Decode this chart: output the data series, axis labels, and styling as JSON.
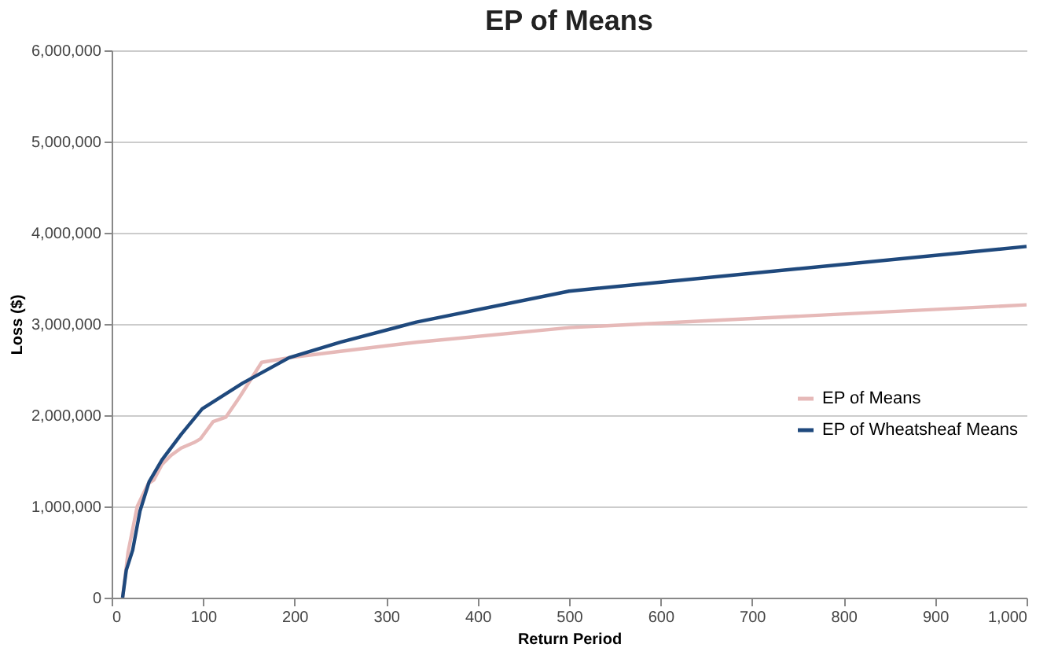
{
  "chart_data": {
    "type": "line",
    "title": "EP of Means",
    "xlabel": "Return Period",
    "ylabel": "Loss ($)",
    "xlim": [
      0,
      1000
    ],
    "xticks": [
      {
        "value": 0,
        "label": "0"
      },
      {
        "value": 100,
        "label": "100"
      },
      {
        "value": 200,
        "label": "200"
      },
      {
        "value": 300,
        "label": "300"
      },
      {
        "value": 400,
        "label": "400"
      },
      {
        "value": 500,
        "label": "500"
      },
      {
        "value": 600,
        "label": "600"
      },
      {
        "value": 700,
        "label": "700"
      },
      {
        "value": 800,
        "label": "800"
      },
      {
        "value": 900,
        "label": "900"
      },
      {
        "value": 1000,
        "label": "1,000"
      }
    ],
    "ylim": [
      0,
      6000000
    ],
    "yticks": [
      {
        "value": 0,
        "label": "0"
      },
      {
        "value": 1000000,
        "label": "1,000,000"
      },
      {
        "value": 2000000,
        "label": "2,000,000"
      },
      {
        "value": 3000000,
        "label": "3,000,000"
      },
      {
        "value": 4000000,
        "label": "4,000,000"
      },
      {
        "value": 5000000,
        "label": "5,000,000"
      },
      {
        "value": 6000000,
        "label": "6,000,000"
      }
    ],
    "grid": "y",
    "legend": "right",
    "marker": "none",
    "series": [
      {
        "name": "EP of Means",
        "color": "#e6b9b8",
        "x": [
          12,
          18,
          28,
          40,
          46,
          55,
          65,
          76,
          90,
          97,
          111,
          125,
          140,
          164,
          194,
          250,
          333,
          500,
          1000
        ],
        "values": [
          0,
          500000,
          1000000,
          1250000,
          1290000,
          1460000,
          1560000,
          1640000,
          1700000,
          1740000,
          1930000,
          1980000,
          2200000,
          2580000,
          2630000,
          2700000,
          2800000,
          2960000,
          3210000
        ]
      },
      {
        "name": "EP of Wheatsheaf Means",
        "color": "#1f497d",
        "x": [
          12,
          16,
          23,
          31,
          41,
          55,
          76,
          99,
          143,
          194,
          250,
          333,
          500,
          1000
        ],
        "values": [
          0,
          300000,
          520000,
          950000,
          1270000,
          1510000,
          1790000,
          2070000,
          2350000,
          2630000,
          2800000,
          3020000,
          3360000,
          3850000
        ]
      }
    ]
  }
}
